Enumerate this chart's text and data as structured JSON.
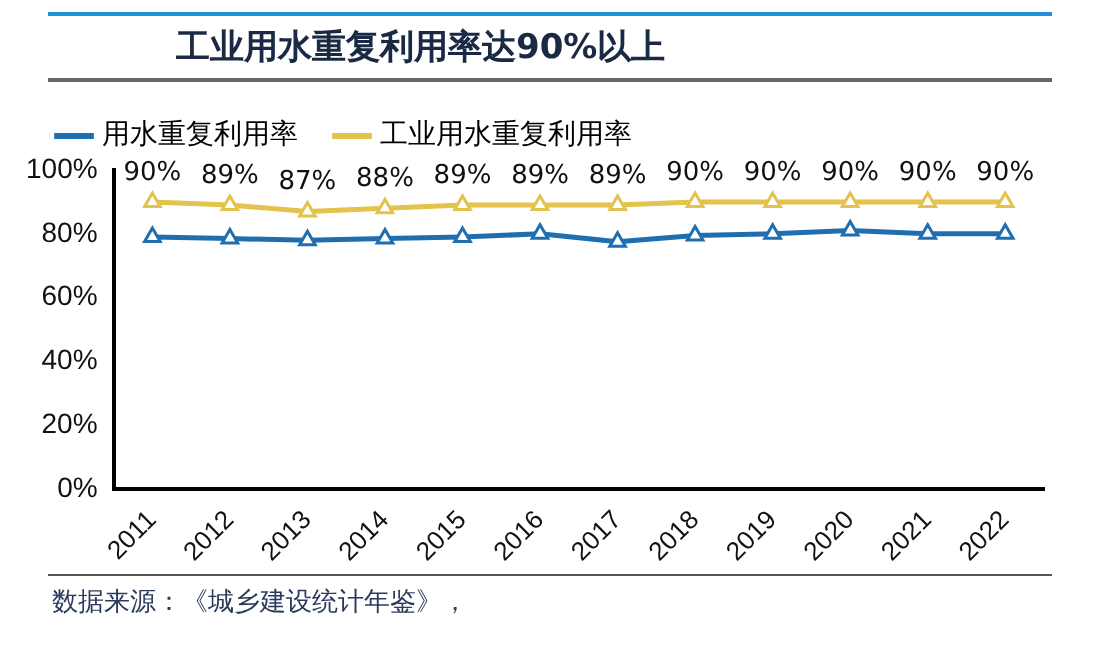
{
  "chart_data": {
    "type": "line",
    "title": "工业用水重复利用率达90%以上",
    "annotations": [
      "数据来源：《城乡建设统计年鉴》，"
    ],
    "categories": [
      "2011",
      "2012",
      "2013",
      "2014",
      "2015",
      "2016",
      "2017",
      "2018",
      "2019",
      "2020",
      "2021",
      "2022"
    ],
    "series": [
      {
        "name": "用水重复利用率",
        "color": "#1f6fb0",
        "values": [
          79,
          78.5,
          78,
          78.5,
          79,
          80,
          77.5,
          79.5,
          80,
          81,
          80,
          80
        ]
      },
      {
        "name": "工业用水重复利用率",
        "color": "#e3c24e",
        "values": [
          90,
          89,
          87,
          88,
          89,
          89,
          89,
          90,
          90,
          90,
          90,
          90
        ],
        "value_labels": [
          "90%",
          "89%",
          "87%",
          "88%",
          "89%",
          "89%",
          "89%",
          "90%",
          "90%",
          "90%",
          "90%",
          "90%"
        ]
      }
    ],
    "ylim": [
      0,
      100
    ],
    "yticks": [
      {
        "value": 0,
        "label": "0%"
      },
      {
        "value": 20,
        "label": "20%"
      },
      {
        "value": 40,
        "label": "40%"
      },
      {
        "value": 60,
        "label": "60%"
      },
      {
        "value": 80,
        "label": "80%"
      },
      {
        "value": 100,
        "label": "100%"
      }
    ],
    "grid": false,
    "legend": "top",
    "marker": "triangle",
    "line_style": "solid"
  }
}
